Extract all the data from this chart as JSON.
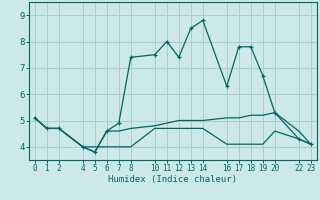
{
  "xlabel": "Humidex (Indice chaleur)",
  "background_color": "#cce8e8",
  "grid_color": "#aacccc",
  "line_color": "#006666",
  "x_ticks": [
    0,
    1,
    2,
    4,
    5,
    6,
    7,
    8,
    10,
    11,
    12,
    13,
    14,
    16,
    17,
    18,
    19,
    20,
    22,
    23
  ],
  "ylim": [
    3.5,
    9.5
  ],
  "xlim": [
    -0.5,
    23.5
  ],
  "yticks": [
    4,
    5,
    6,
    7,
    8,
    9
  ],
  "series1_x": [
    0,
    1,
    2,
    4,
    5,
    6,
    7,
    8,
    10,
    11,
    12,
    13,
    14,
    16,
    17,
    18,
    19,
    20,
    22,
    23
  ],
  "series1_y": [
    5.1,
    4.7,
    4.7,
    4.0,
    3.8,
    4.6,
    4.6,
    4.7,
    4.8,
    4.9,
    5.0,
    5.0,
    5.0,
    5.1,
    5.1,
    5.2,
    5.2,
    5.3,
    4.6,
    4.1
  ],
  "series2_x": [
    0,
    1,
    2,
    4,
    5,
    6,
    7,
    8,
    10,
    11,
    12,
    13,
    14,
    16,
    17,
    18,
    19,
    20,
    22,
    23
  ],
  "series2_y": [
    5.1,
    4.7,
    4.7,
    4.0,
    3.8,
    4.6,
    4.9,
    7.4,
    7.5,
    8.0,
    7.4,
    8.5,
    8.8,
    6.3,
    7.8,
    7.8,
    6.7,
    5.3,
    4.3,
    4.1
  ],
  "series3_x": [
    0,
    1,
    2,
    4,
    5,
    6,
    7,
    8,
    10,
    11,
    12,
    13,
    14,
    16,
    17,
    18,
    19,
    20,
    22,
    23
  ],
  "series3_y": [
    5.1,
    4.7,
    4.7,
    4.0,
    4.0,
    4.0,
    4.0,
    4.0,
    4.7,
    4.7,
    4.7,
    4.7,
    4.7,
    4.1,
    4.1,
    4.1,
    4.1,
    4.6,
    4.3,
    4.1
  ]
}
